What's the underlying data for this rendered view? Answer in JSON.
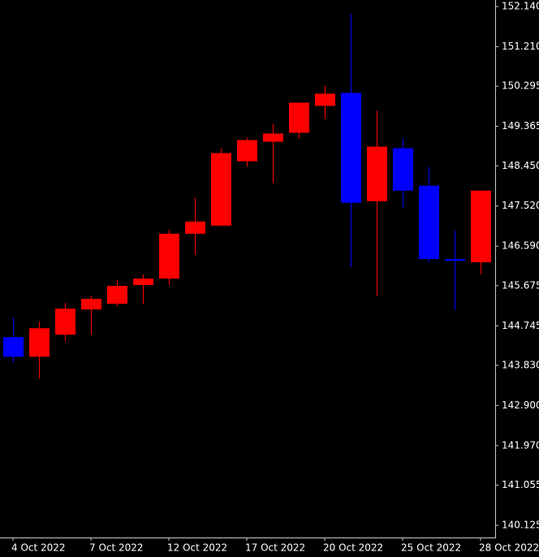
{
  "chart_data": {
    "type": "candlestick",
    "categories": [
      "4 Oct 2022",
      null,
      null,
      "7 Oct 2022",
      null,
      null,
      "12 Oct 2022",
      null,
      null,
      "17 Oct 2022",
      null,
      null,
      "20 Oct 2022",
      null,
      null,
      "25 Oct 2022",
      null,
      null,
      "28 Oct 2022"
    ],
    "open": [
      144.483,
      144.03,
      144.539,
      145.124,
      145.256,
      145.69,
      145.84,
      146.878,
      147.066,
      148.556,
      149.009,
      149.217,
      149.839,
      150.141,
      147.632,
      148.858,
      147.991,
      146.293,
      146.218
    ],
    "high": [
      144.935,
      144.841,
      145.275,
      145.444,
      145.803,
      145.935,
      146.972,
      147.708,
      148.858,
      149.103,
      149.424,
      149.914,
      150.31,
      151.97,
      149.726,
      149.085,
      148.424,
      146.953,
      147.877
    ],
    "low": [
      143.898,
      143.521,
      144.388,
      144.539,
      145.199,
      145.256,
      145.69,
      146.387,
      147.066,
      148.424,
      148.047,
      149.085,
      149.537,
      146.105,
      145.444,
      147.481,
      146.218,
      145.105,
      145.935
    ],
    "close": [
      144.03,
      144.69,
      145.143,
      145.369,
      145.671,
      145.84,
      146.878,
      147.161,
      148.745,
      149.047,
      149.198,
      149.914,
      150.122,
      147.595,
      148.896,
      147.877,
      146.293,
      146.255,
      147.877
    ],
    "up_color": "#ff0000",
    "down_color": "#0000ff",
    "ylim": [
      139.843,
      152.291
    ],
    "yticks": [
      {
        "value": 152.14,
        "label": "152.140"
      },
      {
        "value": 151.21,
        "label": "151.210"
      },
      {
        "value": 150.295,
        "label": "150.295"
      },
      {
        "value": 149.365,
        "label": "149.365"
      },
      {
        "value": 148.45,
        "label": "148.450"
      },
      {
        "value": 147.52,
        "label": "147.520"
      },
      {
        "value": 146.59,
        "label": "146.590"
      },
      {
        "value": 145.675,
        "label": "145.675"
      },
      {
        "value": 144.745,
        "label": "144.745"
      },
      {
        "value": 143.83,
        "label": "143.830"
      },
      {
        "value": 142.9,
        "label": "142.900"
      },
      {
        "value": 141.97,
        "label": "141.970"
      },
      {
        "value": 141.055,
        "label": "141.055"
      },
      {
        "value": 140.125,
        "label": "140.125"
      }
    ]
  }
}
